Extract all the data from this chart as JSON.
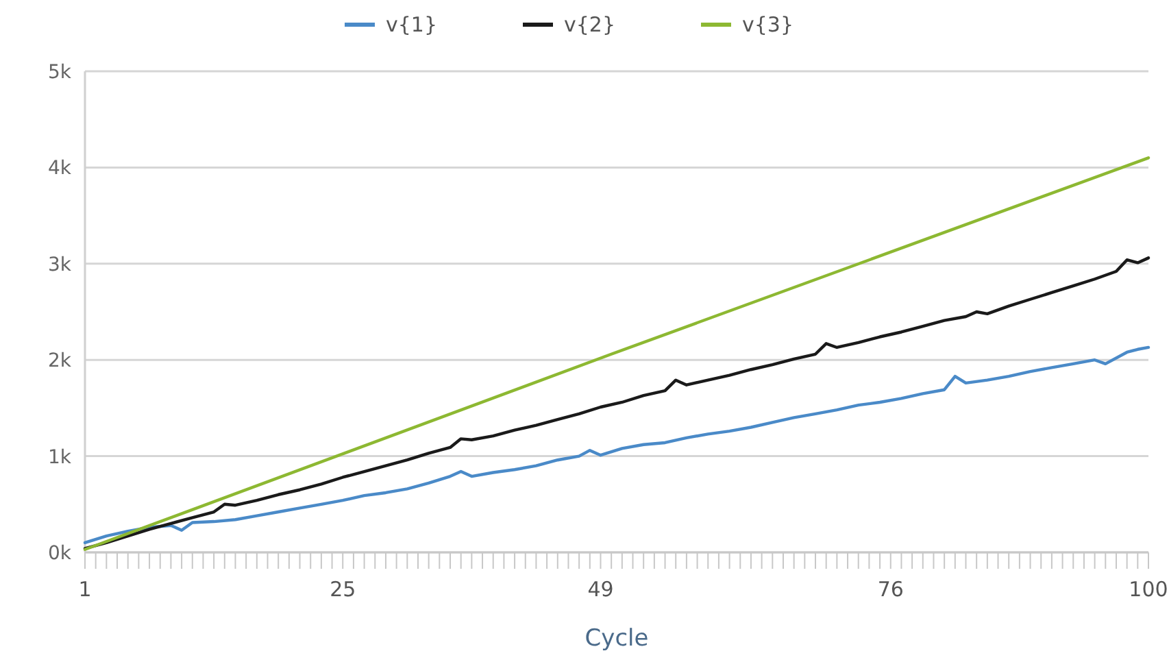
{
  "chart_data": {
    "type": "line",
    "xlabel": "Cycle",
    "xlim": [
      1,
      100
    ],
    "ylim": [
      0,
      5000
    ],
    "xticks": [
      1,
      {
        "value": 2,
        "label": null
      },
      {
        "value": 3,
        "label": null
      },
      {
        "value": 4,
        "label": null
      },
      {
        "value": 5,
        "label": null
      },
      {
        "value": 6,
        "label": null
      },
      {
        "value": 7,
        "label": null
      },
      {
        "value": 8,
        "label": null
      },
      {
        "value": 9,
        "label": null
      },
      {
        "value": 10,
        "label": null
      },
      {
        "value": 11,
        "label": null
      },
      {
        "value": 12,
        "label": null
      },
      {
        "value": 13,
        "label": null
      },
      {
        "value": 14,
        "label": null
      },
      {
        "value": 15,
        "label": null
      },
      {
        "value": 16,
        "label": null
      },
      {
        "value": 17,
        "label": null
      },
      {
        "value": 18,
        "label": null
      },
      {
        "value": 19,
        "label": null
      },
      {
        "value": 20,
        "label": null
      },
      {
        "value": 21,
        "label": null
      },
      {
        "value": 22,
        "label": null
      },
      {
        "value": 23,
        "label": null
      },
      {
        "value": 24,
        "label": null
      },
      25,
      {
        "value": 26,
        "label": null
      },
      {
        "value": 27,
        "label": null
      },
      {
        "value": 28,
        "label": null
      },
      {
        "value": 29,
        "label": null
      },
      {
        "value": 30,
        "label": null
      },
      {
        "value": 31,
        "label": null
      },
      {
        "value": 32,
        "label": null
      },
      {
        "value": 33,
        "label": null
      },
      {
        "value": 34,
        "label": null
      },
      {
        "value": 35,
        "label": null
      },
      {
        "value": 36,
        "label": null
      },
      {
        "value": 37,
        "label": null
      },
      {
        "value": 38,
        "label": null
      },
      {
        "value": 39,
        "label": null
      },
      {
        "value": 40,
        "label": null
      },
      {
        "value": 41,
        "label": null
      },
      {
        "value": 42,
        "label": null
      },
      {
        "value": 43,
        "label": null
      },
      {
        "value": 44,
        "label": null
      },
      {
        "value": 45,
        "label": null
      },
      {
        "value": 46,
        "label": null
      },
      {
        "value": 47,
        "label": null
      },
      {
        "value": 48,
        "label": null
      },
      49,
      {
        "value": 50,
        "label": null
      },
      {
        "value": 51,
        "label": null
      },
      {
        "value": 52,
        "label": null
      },
      {
        "value": 53,
        "label": null
      },
      {
        "value": 54,
        "label": null
      },
      {
        "value": 55,
        "label": null
      },
      {
        "value": 56,
        "label": null
      },
      {
        "value": 57,
        "label": null
      },
      {
        "value": 58,
        "label": null
      },
      {
        "value": 59,
        "label": null
      },
      {
        "value": 60,
        "label": null
      },
      {
        "value": 61,
        "label": null
      },
      {
        "value": 62,
        "label": null
      },
      {
        "value": 63,
        "label": null
      },
      {
        "value": 64,
        "label": null
      },
      {
        "value": 65,
        "label": null
      },
      {
        "value": 66,
        "label": null
      },
      {
        "value": 67,
        "label": null
      },
      {
        "value": 68,
        "label": null
      },
      {
        "value": 69,
        "label": null
      },
      {
        "value": 70,
        "label": null
      },
      {
        "value": 71,
        "label": null
      },
      {
        "value": 72,
        "label": null
      },
      {
        "value": 73,
        "label": null
      },
      {
        "value": 74,
        "label": null
      },
      {
        "value": 75,
        "label": null
      },
      76,
      {
        "value": 77,
        "label": null
      },
      {
        "value": 78,
        "label": null
      },
      {
        "value": 79,
        "label": null
      },
      {
        "value": 80,
        "label": null
      },
      {
        "value": 81,
        "label": null
      },
      {
        "value": 82,
        "label": null
      },
      {
        "value": 83,
        "label": null
      },
      {
        "value": 84,
        "label": null
      },
      {
        "value": 85,
        "label": null
      },
      {
        "value": 86,
        "label": null
      },
      {
        "value": 87,
        "label": null
      },
      {
        "value": 88,
        "label": null
      },
      {
        "value": 89,
        "label": null
      },
      {
        "value": 90,
        "label": null
      },
      {
        "value": 91,
        "label": null
      },
      {
        "value": 92,
        "label": null
      },
      {
        "value": 93,
        "label": null
      },
      {
        "value": 94,
        "label": null
      },
      {
        "value": 95,
        "label": null
      },
      {
        "value": 96,
        "label": null
      },
      {
        "value": 97,
        "label": null
      },
      {
        "value": 98,
        "label": null
      },
      {
        "value": 99,
        "label": null
      },
      100
    ],
    "yticks": [
      {
        "value": 0,
        "label": "0k"
      },
      {
        "value": 1000,
        "label": "1k"
      },
      {
        "value": 2000,
        "label": "2k"
      },
      {
        "value": 3000,
        "label": "3k"
      },
      {
        "value": 4000,
        "label": "4k"
      },
      {
        "value": 5000,
        "label": "5k"
      }
    ],
    "grid": "y",
    "legend": "top",
    "marker": "none",
    "line_style": "solid",
    "series": [
      {
        "name": "v{1}",
        "color": "#4a8ac8",
        "x": [
          1,
          3,
          5,
          7,
          9,
          10,
          11,
          13,
          15,
          17,
          19,
          21,
          23,
          25,
          27,
          29,
          31,
          33,
          35,
          36,
          37,
          39,
          41,
          43,
          45,
          47,
          48,
          49,
          51,
          53,
          55,
          57,
          59,
          61,
          63,
          65,
          67,
          69,
          71,
          73,
          75,
          77,
          79,
          81,
          82,
          83,
          85,
          87,
          89,
          91,
          93,
          95,
          96,
          98,
          99,
          100
        ],
        "values": [
          100,
          170,
          220,
          260,
          280,
          230,
          310,
          320,
          340,
          380,
          420,
          460,
          500,
          540,
          590,
          620,
          660,
          720,
          790,
          840,
          790,
          830,
          860,
          900,
          960,
          1000,
          1060,
          1010,
          1080,
          1120,
          1140,
          1190,
          1230,
          1260,
          1300,
          1350,
          1400,
          1440,
          1480,
          1530,
          1560,
          1600,
          1650,
          1690,
          1830,
          1760,
          1790,
          1830,
          1880,
          1920,
          1960,
          2000,
          1960,
          2080,
          2110,
          2130
        ]
      },
      {
        "name": "v{2}",
        "color": "#1a1a1a",
        "x": [
          1,
          3,
          5,
          7,
          9,
          11,
          13,
          14,
          15,
          17,
          19,
          21,
          23,
          25,
          27,
          29,
          31,
          33,
          35,
          36,
          37,
          39,
          41,
          43,
          45,
          47,
          49,
          51,
          53,
          55,
          56,
          57,
          59,
          61,
          63,
          65,
          67,
          69,
          70,
          71,
          73,
          75,
          77,
          79,
          81,
          83,
          84,
          85,
          87,
          89,
          91,
          93,
          95,
          97,
          98,
          99,
          100
        ],
        "values": [
          40,
          100,
          170,
          240,
          300,
          360,
          420,
          500,
          490,
          540,
          600,
          650,
          710,
          780,
          840,
          900,
          960,
          1030,
          1090,
          1180,
          1170,
          1210,
          1270,
          1320,
          1380,
          1440,
          1510,
          1560,
          1630,
          1680,
          1790,
          1740,
          1790,
          1840,
          1900,
          1950,
          2010,
          2060,
          2170,
          2130,
          2180,
          2240,
          2290,
          2350,
          2410,
          2450,
          2500,
          2480,
          2560,
          2630,
          2700,
          2770,
          2840,
          2920,
          3040,
          3010,
          3060
        ]
      },
      {
        "name": "v{3}",
        "color": "#8db832",
        "x": [
          1,
          50,
          100
        ],
        "values": [
          30,
          2060,
          4100
        ]
      }
    ]
  }
}
